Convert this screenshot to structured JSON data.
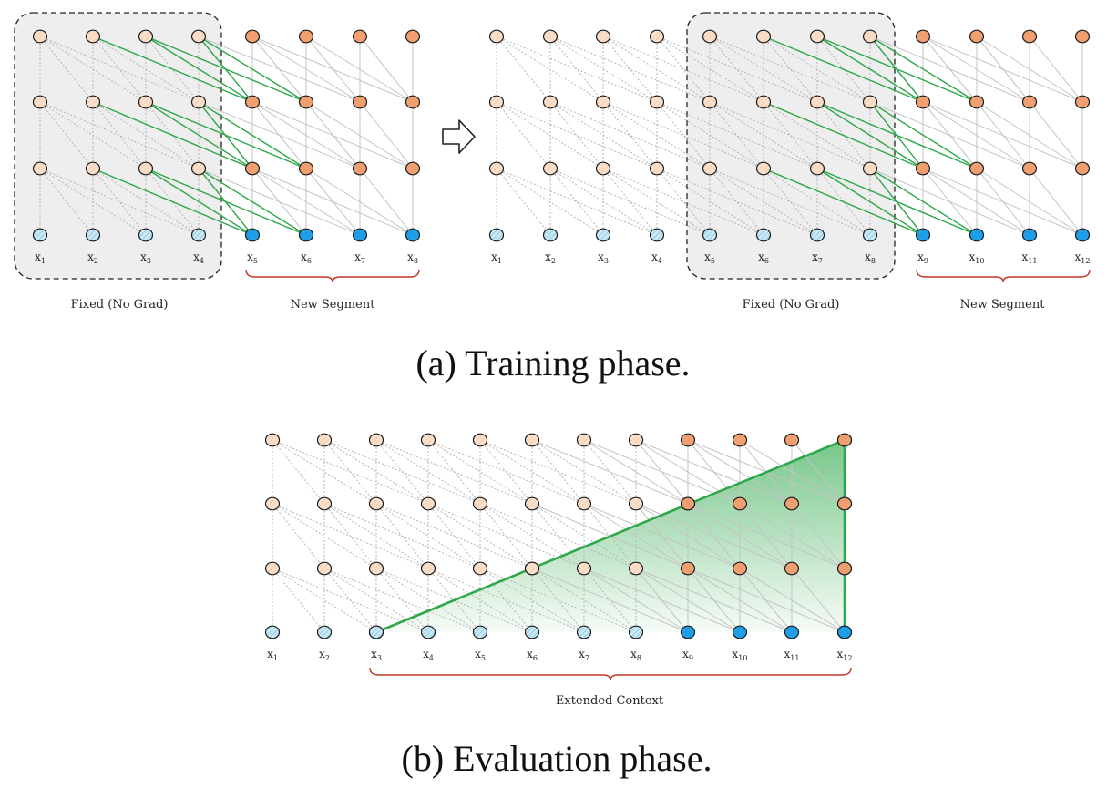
{
  "training": {
    "left": {
      "x_labels": [
        "1",
        "2",
        "3",
        "4",
        "5",
        "6",
        "7",
        "8"
      ],
      "fixed_caption": "Fixed (No Grad)",
      "new_caption": "New Segment"
    },
    "right": {
      "x_labels": [
        "1",
        "2",
        "3",
        "4",
        "5",
        "6",
        "7",
        "8",
        "9",
        "10",
        "11",
        "12"
      ],
      "fixed_caption": "Fixed (No Grad)",
      "new_caption": "New Segment"
    },
    "caption": "(a) Training phase."
  },
  "evaluation": {
    "x_labels": [
      "1",
      "2",
      "3",
      "4",
      "5",
      "6",
      "7",
      "8",
      "9",
      "10",
      "11",
      "12"
    ],
    "extended_caption": "Extended Context",
    "caption": "(b) Evaluation phase."
  },
  "colors": {
    "node_fixed_hidden": "#fbe0cc",
    "node_new_hidden": "#f0a070",
    "node_fixed_input": "#c8e8f5",
    "node_new_input": "#1e9ee6",
    "edge_grey": "#c4c4c4",
    "edge_dotted": "#b5b5b5",
    "edge_green": "#2ea84a",
    "brace_red": "#c0392b",
    "fixed_box": "#eeeeee"
  }
}
